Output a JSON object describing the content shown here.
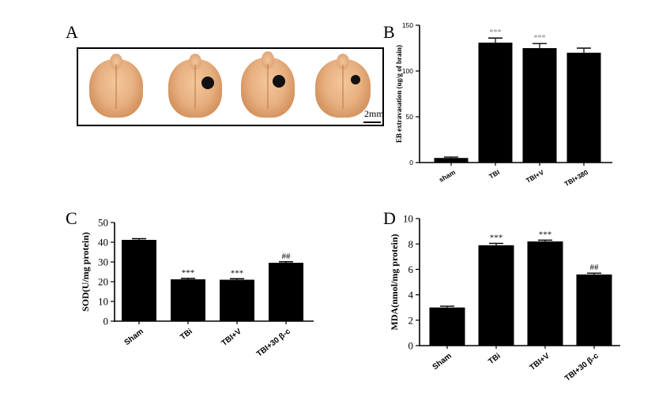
{
  "panels": {
    "a": {
      "letter": "A",
      "scale_label": "2mm"
    },
    "b": {
      "letter": "B"
    },
    "c": {
      "letter": "C"
    },
    "d": {
      "letter": "D"
    }
  },
  "colors": {
    "bar": "#000000",
    "marker_b": "#808080",
    "marker_cd": "#000000"
  },
  "chart_data": [
    {
      "type": "bar",
      "panel": "B",
      "title": "",
      "xlabel": "",
      "ylabel": "EB extravasation (ug/g of brain)",
      "categories": [
        "sham",
        "TBI",
        "TBI+V",
        "TBI+380"
      ],
      "values": [
        5,
        131,
        125,
        120
      ],
      "errors": [
        1,
        5,
        5,
        5
      ],
      "annotations": [
        "",
        "***",
        "***",
        ""
      ],
      "ylim": [
        0,
        150
      ],
      "yticks": [
        "0",
        "50",
        "100",
        "150"
      ],
      "grid": false
    },
    {
      "type": "bar",
      "panel": "C",
      "title": "",
      "xlabel": "",
      "ylabel": "SOD(U/mg protein)",
      "categories": [
        "Sham",
        "TBi",
        "TBI+V",
        "TBI+30 β-c"
      ],
      "values": [
        41.2,
        21.2,
        21.0,
        29.6
      ],
      "errors": [
        0.6,
        0.5,
        0.5,
        0.5
      ],
      "annotations": [
        "",
        "***",
        "***",
        "##"
      ],
      "ylim": [
        0,
        50
      ],
      "yticks": [
        "0",
        "10",
        "20",
        "30",
        "40",
        "50"
      ],
      "grid": false
    },
    {
      "type": "bar",
      "panel": "D",
      "title": "",
      "xlabel": "",
      "ylabel": "MDA(nmol/mg protein)",
      "categories": [
        "Sham",
        "TBi",
        "TBI+V",
        "TBI+30 β-c"
      ],
      "values": [
        3.0,
        7.9,
        8.2,
        5.6
      ],
      "errors": [
        0.1,
        0.15,
        0.1,
        0.1
      ],
      "annotations": [
        "",
        "***",
        "***",
        "##"
      ],
      "ylim": [
        0,
        10
      ],
      "yticks": [
        "0",
        "2",
        "4",
        "6",
        "8",
        "10"
      ],
      "grid": false
    }
  ]
}
